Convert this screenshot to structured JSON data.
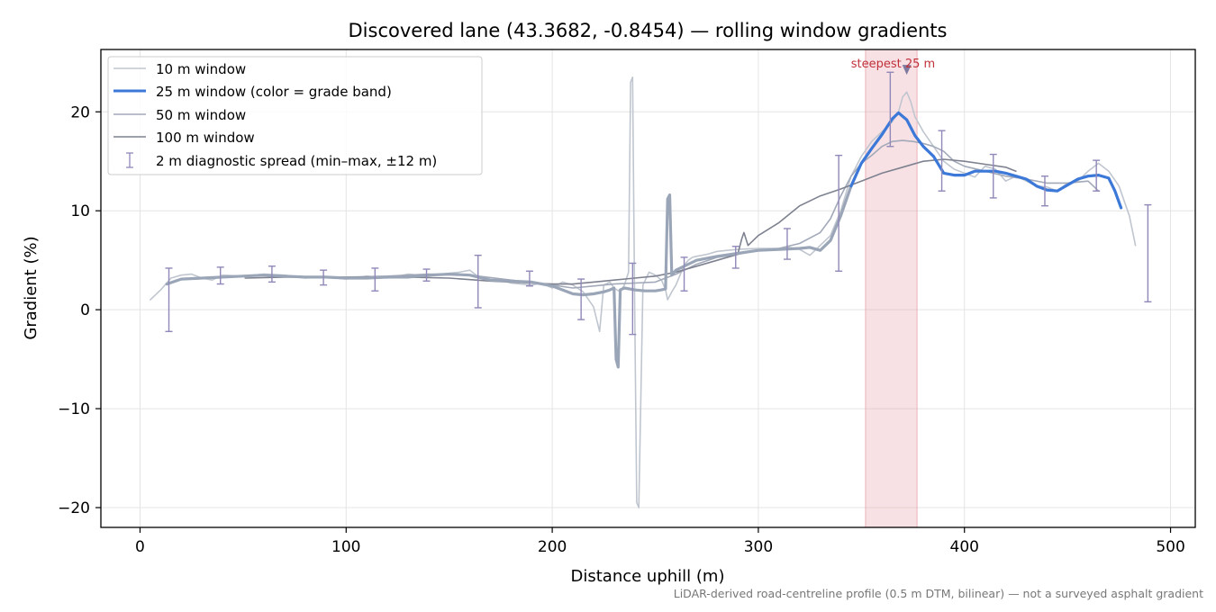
{
  "chart_data": {
    "type": "line",
    "title": "Discovered lane (43.3682, -0.8454) — rolling window gradients",
    "xlabel": "Distance uphill (m)",
    "ylabel": "Gradient (%)",
    "xlim": [
      -19,
      512
    ],
    "ylim": [
      -22,
      26.3
    ],
    "xticks": [
      0,
      100,
      200,
      300,
      400,
      500
    ],
    "yticks": [
      -20,
      -10,
      0,
      10,
      20
    ],
    "xtick_labels": [
      "0",
      "100",
      "200",
      "300",
      "400",
      "500"
    ],
    "ytick_labels": [
      "−20",
      "−10",
      "0",
      "10",
      "20"
    ],
    "grid": true,
    "legend_position": "top-left",
    "footnote": "LiDAR-derived road-centreline profile (0.5 m DTM, bilinear) — not a surveyed asphalt gradient",
    "highlight": {
      "x_start": 352,
      "x_end": 377,
      "label": "steepest 25 m",
      "marker_x": 372,
      "marker_y": 24.2,
      "color": "#e8a3aa"
    },
    "colors": {
      "w10": "#c0c6cf",
      "w25_band": "#9aa6b8",
      "w25_steep": "#3b78d8",
      "w50": "#a2a9b8",
      "w100": "#7e8290",
      "spread": "#9088b8"
    },
    "series": [
      {
        "name": "10 m window",
        "key": "w10",
        "x": [
          5,
          10,
          15,
          20,
          25,
          30,
          35,
          40,
          50,
          60,
          70,
          80,
          90,
          100,
          110,
          120,
          130,
          140,
          150,
          155,
          160,
          165,
          170,
          175,
          180,
          185,
          190,
          195,
          200,
          205,
          210,
          215,
          220,
          223,
          225,
          228,
          230,
          233,
          235,
          237,
          238,
          239,
          240,
          241,
          242,
          244,
          247,
          250,
          253,
          255,
          256,
          258,
          260,
          262,
          264,
          266,
          268,
          270,
          275,
          280,
          290,
          300,
          310,
          315,
          320,
          325,
          330,
          335,
          340,
          345,
          350,
          355,
          360,
          365,
          368,
          370,
          372,
          374,
          376,
          380,
          385,
          390,
          395,
          400,
          405,
          410,
          415,
          420,
          425,
          430,
          435,
          440,
          445,
          450,
          455,
          460,
          465,
          470,
          475,
          480,
          483
        ],
        "y": [
          1.0,
          2.0,
          3.2,
          3.5,
          3.6,
          3.2,
          3.0,
          3.5,
          3.4,
          3.6,
          3.5,
          3.2,
          3.3,
          3.1,
          3.4,
          3.2,
          3.6,
          3.4,
          3.7,
          3.8,
          4.0,
          3.2,
          2.9,
          3.0,
          2.7,
          2.6,
          2.5,
          2.7,
          2.2,
          2.8,
          2.5,
          1.8,
          0.3,
          -2.2,
          2.5,
          2.8,
          2.2,
          1.8,
          2.5,
          3.8,
          23.0,
          23.5,
          0.5,
          -19.5,
          -20.0,
          2.5,
          3.8,
          3.5,
          3.0,
          2.0,
          1.0,
          1.8,
          2.5,
          3.5,
          4.5,
          5.0,
          5.3,
          5.4,
          5.6,
          5.9,
          6.1,
          6.2,
          6.2,
          6.3,
          6.1,
          5.5,
          6.5,
          7.5,
          10.0,
          13.5,
          15.5,
          17.0,
          18.0,
          19.0,
          20.0,
          21.5,
          22.0,
          21.0,
          19.5,
          18.0,
          16.5,
          15.0,
          14.2,
          13.8,
          13.4,
          14.5,
          14.2,
          13.0,
          13.5,
          13.0,
          12.5,
          12.4,
          12.0,
          12.8,
          13.0,
          14.0,
          14.8,
          14.0,
          12.5,
          9.5,
          6.5
        ]
      },
      {
        "name": "25 m window (color = grade band)",
        "key": "w25",
        "x": [
          13,
          20,
          30,
          40,
          50,
          60,
          70,
          80,
          90,
          100,
          110,
          120,
          130,
          140,
          150,
          160,
          170,
          180,
          190,
          195,
          200,
          205,
          210,
          215,
          220,
          225,
          228,
          230,
          231,
          232,
          233,
          235,
          240,
          245,
          250,
          253,
          255,
          256,
          257,
          258,
          260,
          265,
          270,
          280,
          290,
          300,
          310,
          320,
          325,
          330,
          335,
          340,
          345,
          350,
          355,
          360,
          365,
          368,
          372,
          376,
          380,
          385,
          390,
          395,
          400,
          405,
          410,
          415,
          420,
          425,
          430,
          435,
          440,
          445,
          450,
          455,
          460,
          465,
          470,
          473,
          476
        ],
        "y": [
          2.6,
          3.1,
          3.2,
          3.3,
          3.4,
          3.5,
          3.4,
          3.3,
          3.3,
          3.2,
          3.2,
          3.3,
          3.3,
          3.5,
          3.6,
          3.5,
          3.0,
          2.9,
          2.8,
          2.6,
          2.4,
          2.0,
          1.6,
          1.5,
          1.6,
          1.8,
          2.0,
          2.2,
          -5.0,
          -5.8,
          2.0,
          2.2,
          2.0,
          1.9,
          1.9,
          2.0,
          2.1,
          11.2,
          11.6,
          3.5,
          4.0,
          4.5,
          5.0,
          5.4,
          5.7,
          6.0,
          6.1,
          6.2,
          6.3,
          6.0,
          7.0,
          9.5,
          12.5,
          14.8,
          16.3,
          17.7,
          19.3,
          19.9,
          19.2,
          17.6,
          16.5,
          15.5,
          13.8,
          13.6,
          13.6,
          14.0,
          14.0,
          14.0,
          13.8,
          13.5,
          13.2,
          12.5,
          12.1,
          12.0,
          12.6,
          13.2,
          13.5,
          13.6,
          13.3,
          12.0,
          10.3
        ]
      },
      {
        "name": "50 m window",
        "key": "w50",
        "x": [
          26,
          40,
          60,
          80,
          100,
          120,
          140,
          160,
          180,
          200,
          210,
          220,
          230,
          240,
          250,
          260,
          270,
          280,
          290,
          300,
          310,
          320,
          330,
          335,
          340,
          345,
          350,
          355,
          360,
          365,
          370,
          375,
          380,
          385,
          390,
          395,
          400,
          410,
          420,
          430,
          440,
          450,
          460,
          465
        ],
        "y": [
          3.1,
          3.3,
          3.5,
          3.3,
          3.3,
          3.4,
          3.6,
          3.5,
          3.0,
          2.5,
          2.2,
          2.4,
          2.6,
          2.7,
          2.8,
          3.6,
          4.6,
          5.3,
          5.6,
          6.0,
          6.2,
          6.7,
          7.8,
          9.2,
          11.5,
          13.5,
          14.8,
          15.6,
          16.5,
          17.0,
          17.1,
          17.0,
          16.8,
          16.5,
          16.0,
          15.0,
          14.5,
          14.0,
          13.5,
          13.2,
          12.8,
          12.8,
          13.0,
          12.0
        ]
      },
      {
        "name": "100 m window",
        "key": "w100",
        "x": [
          51,
          70,
          90,
          110,
          130,
          150,
          170,
          190,
          200,
          210,
          220,
          230,
          240,
          250,
          260,
          270,
          280,
          290,
          292,
          293,
          295,
          300,
          310,
          320,
          330,
          340,
          350,
          360,
          370,
          380,
          390,
          400,
          410,
          420,
          425
        ],
        "y": [
          3.2,
          3.3,
          3.3,
          3.3,
          3.3,
          3.2,
          2.9,
          2.7,
          2.6,
          2.6,
          2.8,
          3.0,
          3.2,
          3.4,
          3.8,
          4.4,
          5.0,
          5.6,
          7.2,
          7.8,
          6.5,
          7.5,
          8.8,
          10.5,
          11.5,
          12.2,
          13.0,
          13.8,
          14.4,
          15.0,
          15.2,
          15.0,
          14.7,
          14.4,
          14.0
        ]
      }
    ],
    "spread": {
      "name": "2 m diagnostic spread (min–max, ±12 m)",
      "x": [
        14,
        39,
        64,
        89,
        114,
        139,
        164,
        189,
        214,
        239,
        264,
        289,
        314,
        339,
        364,
        389,
        414,
        439,
        464,
        489
      ],
      "y_min": [
        -2.2,
        2.6,
        2.8,
        2.5,
        1.9,
        2.9,
        0.2,
        2.4,
        -1.0,
        -2.5,
        1.9,
        4.2,
        5.1,
        3.9,
        16.5,
        12.0,
        11.3,
        10.5,
        12.0,
        0.8
      ],
      "y_max": [
        4.2,
        4.3,
        4.4,
        4.0,
        4.2,
        4.1,
        5.5,
        3.9,
        3.1,
        4.7,
        5.3,
        6.4,
        8.2,
        15.6,
        24.0,
        18.1,
        15.7,
        13.5,
        15.1,
        10.6
      ]
    }
  }
}
